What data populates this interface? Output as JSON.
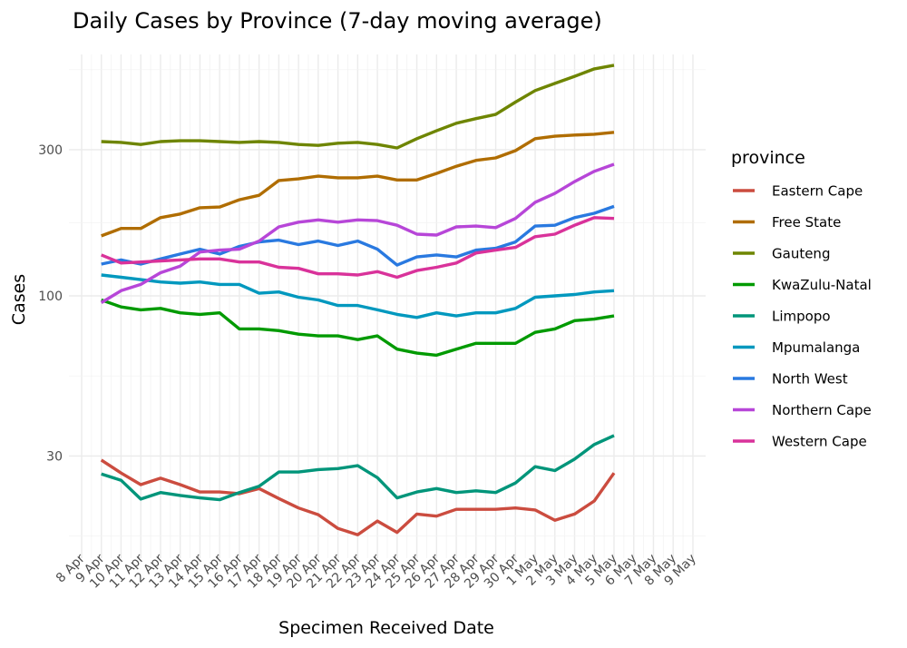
{
  "chart_data": {
    "type": "line",
    "title": "Daily Cases by Province (7-day moving average)",
    "xlabel": "Specimen Received Date",
    "ylabel": "Cases",
    "y_scale": "log10",
    "y_ticks": [
      30,
      100,
      300
    ],
    "y_tick_labels": [
      "30",
      "100",
      "300"
    ],
    "x_tick_labels": [
      "8 Apr",
      "9 Apr",
      "10 Apr",
      "11 Apr",
      "12 Apr",
      "13 Apr",
      "14 Apr",
      "15 Apr",
      "16 Apr",
      "17 Apr",
      "18 Apr",
      "19 Apr",
      "20 Apr",
      "21 Apr",
      "22 Apr",
      "23 Apr",
      "24 Apr",
      "25 Apr",
      "26 Apr",
      "27 Apr",
      "28 Apr",
      "29 Apr",
      "30 Apr",
      "1 May",
      "2 May",
      "3 May",
      "4 May",
      "5 May",
      "6 May",
      "7 May",
      "8 May",
      "9 May"
    ],
    "x": [
      "9 Apr",
      "10 Apr",
      "11 Apr",
      "12 Apr",
      "13 Apr",
      "14 Apr",
      "15 Apr",
      "16 Apr",
      "17 Apr",
      "18 Apr",
      "19 Apr",
      "20 Apr",
      "21 Apr",
      "22 Apr",
      "23 Apr",
      "24 Apr",
      "25 Apr",
      "26 Apr",
      "27 Apr",
      "28 Apr",
      "29 Apr",
      "30 Apr",
      "1 May",
      "2 May",
      "3 May",
      "4 May",
      "5 May"
    ],
    "grid": true,
    "legend": {
      "title": "province",
      "placement": "right"
    },
    "series": [
      {
        "name": "Eastern Cape",
        "color": "#CB4C3F",
        "values": [
          29.1,
          26.4,
          24.2,
          25.4,
          24.2,
          22.9,
          22.9,
          22.6,
          23.5,
          21.8,
          20.3,
          19.3,
          17.4,
          16.6,
          18.4,
          16.9,
          19.4,
          19.1,
          20.1,
          20.1,
          20.1,
          20.3,
          20.0,
          18.5,
          19.4,
          21.4,
          26.4
        ]
      },
      {
        "name": "Free State",
        "color": "#B06D00",
        "values": [
          157,
          166,
          166,
          180,
          185,
          194,
          195,
          206,
          213,
          238,
          241,
          246,
          243,
          243,
          246,
          239,
          239,
          251,
          265,
          277,
          282,
          298,
          326,
          332,
          335,
          337,
          342
        ]
      },
      {
        "name": "Gauteng",
        "color": "#6E8500",
        "values": [
          319,
          317,
          312,
          319,
          321,
          321,
          319,
          317,
          319,
          317,
          312,
          310,
          315,
          317,
          312,
          304,
          326,
          346,
          366,
          379,
          391,
          429,
          468,
          494,
          521,
          551,
          566
        ]
      },
      {
        "name": "KwaZulu-Natal",
        "color": "#009A00",
        "values": [
          97,
          92,
          90,
          91,
          88,
          87,
          88,
          78,
          78,
          77,
          75,
          74,
          74,
          72,
          74,
          67,
          65,
          64,
          67,
          70,
          70,
          70,
          76,
          78,
          83,
          84,
          86
        ]
      },
      {
        "name": "Limpopo",
        "color": "#00957A",
        "values": [
          26.2,
          25.0,
          21.7,
          22.8,
          22.3,
          21.9,
          21.6,
          22.8,
          23.9,
          26.6,
          26.6,
          27.1,
          27.3,
          27.9,
          25.5,
          21.9,
          22.9,
          23.5,
          22.8,
          23.1,
          22.8,
          24.5,
          27.7,
          26.9,
          29.3,
          32.7,
          35.0
        ]
      },
      {
        "name": "Mpumalanga",
        "color": "#0098BE",
        "values": [
          117,
          115,
          113,
          111,
          110,
          111,
          109,
          109,
          102,
          103,
          99,
          97,
          93,
          93,
          90,
          87,
          85,
          88,
          86,
          88,
          88,
          91,
          99,
          100,
          101,
          103,
          104
        ]
      },
      {
        "name": "North West",
        "color": "#2979E0",
        "values": [
          127,
          131,
          127,
          132,
          137,
          142,
          137,
          145,
          150,
          152,
          147,
          151,
          146,
          151,
          142,
          126,
          134,
          136,
          134,
          141,
          143,
          150,
          169,
          170,
          180,
          186,
          196
        ]
      },
      {
        "name": "Northern Cape",
        "color": "#B746D8",
        "values": [
          95,
          104,
          109,
          119,
          125,
          139,
          141,
          142,
          151,
          168,
          174,
          177,
          174,
          177,
          176,
          170,
          159,
          158,
          168,
          169,
          167,
          179,
          202,
          216,
          236,
          255,
          269
        ]
      },
      {
        "name": "Western Cape",
        "color": "#D9329A",
        "values": [
          136,
          128,
          129,
          130,
          131,
          132,
          132,
          129,
          129,
          124,
          123,
          118,
          118,
          117,
          120,
          115,
          121,
          124,
          128,
          138,
          141,
          144,
          156,
          159,
          170,
          180,
          179
        ]
      }
    ]
  }
}
